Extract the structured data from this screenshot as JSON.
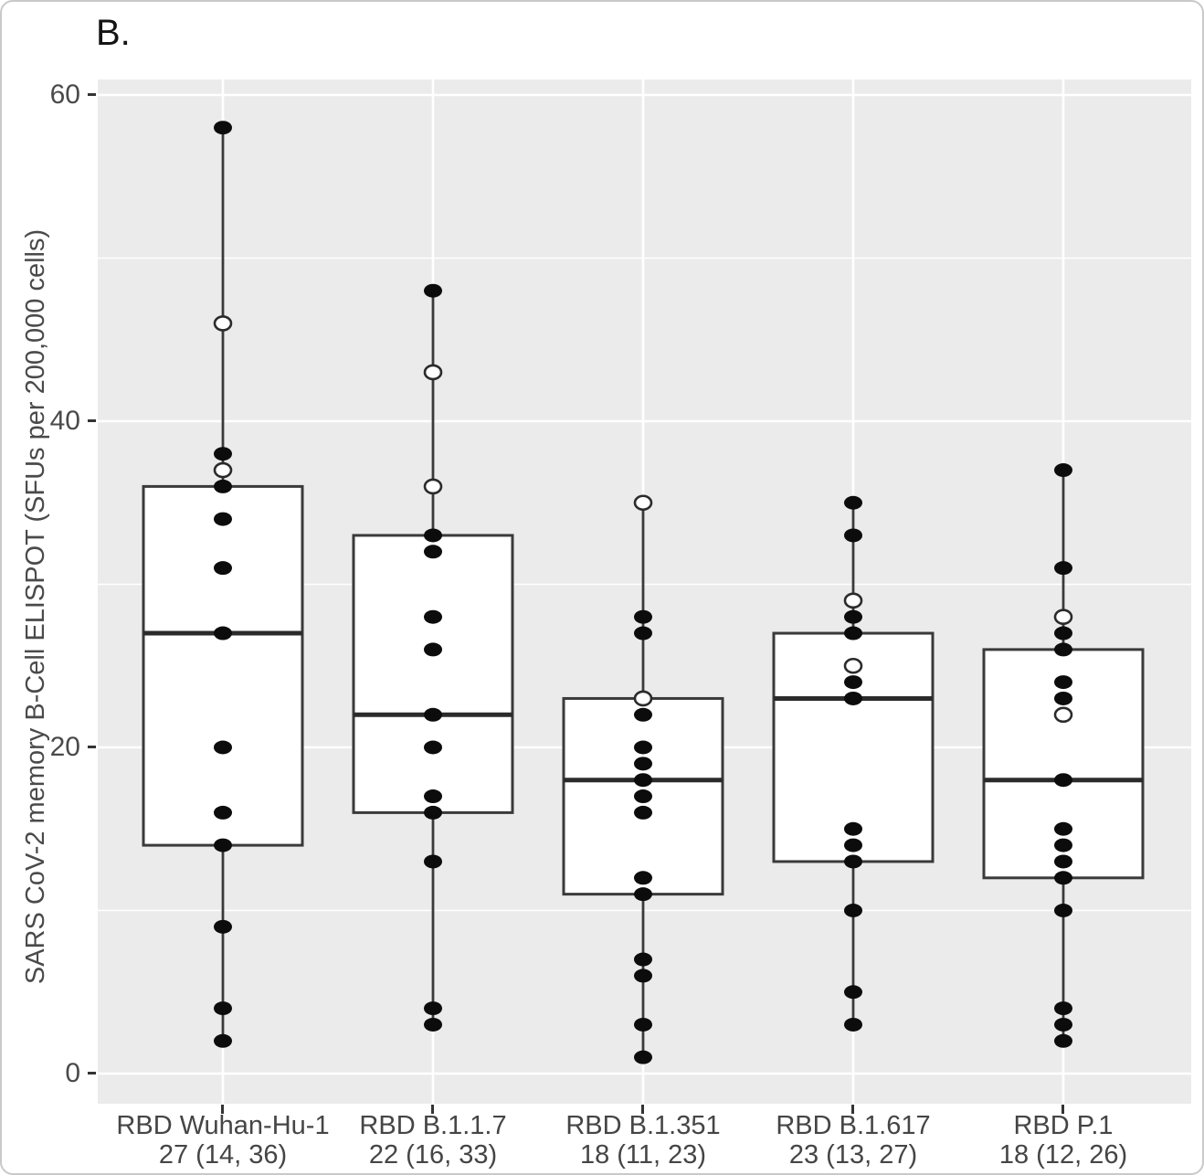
{
  "panel_label": "B.",
  "y_axis": {
    "label": "SARS CoV-2 memory B-Cell ELISPOT (SFUs per 200,000 cells)",
    "ticks": [
      {
        "label": "60",
        "value": 60
      },
      {
        "label": "40",
        "value": 40
      },
      {
        "label": "20",
        "value": 20
      },
      {
        "label": "0",
        "value": 0
      }
    ],
    "minor_gridlines": [
      50,
      30,
      10
    ]
  },
  "chart_data": {
    "type": "boxplot",
    "title": "B.",
    "xlabel": "",
    "ylabel": "SARS CoV-2 memory B-Cell ELISPOT (SFUs per 200,000 cells)",
    "ylim": [
      -2,
      61
    ],
    "grid": "white major and minor horizontal lines plus vertical category lines on gray background",
    "legend": "none",
    "categories": [
      "RBD Wuhan-Hu-1",
      "RBD B.1.1.7",
      "RBD B.1.351",
      "RBD B.1.617",
      "RBD P.1"
    ],
    "category_stats_labels": [
      "27 (14, 36)",
      "22 (16, 33)",
      "18 (11, 23)",
      "23 (13, 27)",
      "18 (12, 26)"
    ],
    "series": [
      {
        "label": "RBD Wuhan-Hu-1",
        "stats_label": "27 (14, 36)",
        "median": 27,
        "q1": 14,
        "q3": 36,
        "whisker_low": 2,
        "whisker_high": 58,
        "points": [
          {
            "value": 58,
            "open": false
          },
          {
            "value": 46,
            "open": true
          },
          {
            "value": 38,
            "open": false
          },
          {
            "value": 37,
            "open": true
          },
          {
            "value": 36,
            "open": false
          },
          {
            "value": 34,
            "open": false
          },
          {
            "value": 31,
            "open": false
          },
          {
            "value": 27,
            "open": false
          },
          {
            "value": 20,
            "open": false
          },
          {
            "value": 16,
            "open": false
          },
          {
            "value": 14,
            "open": false
          },
          {
            "value": 9,
            "open": false
          },
          {
            "value": 4,
            "open": false
          },
          {
            "value": 2,
            "open": false
          }
        ]
      },
      {
        "label": "RBD B.1.1.7",
        "stats_label": "22 (16, 33)",
        "median": 22,
        "q1": 16,
        "q3": 33,
        "whisker_low": 3,
        "whisker_high": 48,
        "points": [
          {
            "value": 48,
            "open": false
          },
          {
            "value": 43,
            "open": true
          },
          {
            "value": 36,
            "open": true
          },
          {
            "value": 33,
            "open": false
          },
          {
            "value": 32,
            "open": false
          },
          {
            "value": 28,
            "open": false
          },
          {
            "value": 26,
            "open": false
          },
          {
            "value": 22,
            "open": false
          },
          {
            "value": 20,
            "open": false
          },
          {
            "value": 17,
            "open": false
          },
          {
            "value": 16,
            "open": false
          },
          {
            "value": 13,
            "open": false
          },
          {
            "value": 4,
            "open": false
          },
          {
            "value": 3,
            "open": false
          }
        ]
      },
      {
        "label": "RBD B.1.351",
        "stats_label": "18 (11, 23)",
        "median": 18,
        "q1": 11,
        "q3": 23,
        "whisker_low": 1,
        "whisker_high": 35,
        "points": [
          {
            "value": 35,
            "open": true
          },
          {
            "value": 28,
            "open": false
          },
          {
            "value": 27,
            "open": false
          },
          {
            "value": 23,
            "open": true
          },
          {
            "value": 22,
            "open": false
          },
          {
            "value": 20,
            "open": false
          },
          {
            "value": 19,
            "open": false
          },
          {
            "value": 18,
            "open": false
          },
          {
            "value": 17,
            "open": false
          },
          {
            "value": 16,
            "open": false
          },
          {
            "value": 12,
            "open": false
          },
          {
            "value": 11,
            "open": false
          },
          {
            "value": 7,
            "open": false
          },
          {
            "value": 6,
            "open": false
          },
          {
            "value": 3,
            "open": false
          },
          {
            "value": 1,
            "open": false
          }
        ]
      },
      {
        "label": "RBD B.1.617",
        "stats_label": "23 (13, 27)",
        "median": 23,
        "q1": 13,
        "q3": 27,
        "whisker_low": 3,
        "whisker_high": 35,
        "points": [
          {
            "value": 35,
            "open": false
          },
          {
            "value": 33,
            "open": false
          },
          {
            "value": 29,
            "open": true
          },
          {
            "value": 28,
            "open": false
          },
          {
            "value": 27,
            "open": false
          },
          {
            "value": 25,
            "open": true
          },
          {
            "value": 24,
            "open": false
          },
          {
            "value": 23,
            "open": false
          },
          {
            "value": 15,
            "open": false
          },
          {
            "value": 14,
            "open": false
          },
          {
            "value": 13,
            "open": false
          },
          {
            "value": 10,
            "open": false
          },
          {
            "value": 5,
            "open": false
          },
          {
            "value": 3,
            "open": false
          }
        ]
      },
      {
        "label": "RBD P.1",
        "stats_label": "18 (12, 26)",
        "median": 18,
        "q1": 12,
        "q3": 26,
        "whisker_low": 2,
        "whisker_high": 37,
        "points": [
          {
            "value": 37,
            "open": false
          },
          {
            "value": 31,
            "open": false
          },
          {
            "value": 28,
            "open": true
          },
          {
            "value": 27,
            "open": false
          },
          {
            "value": 26,
            "open": false
          },
          {
            "value": 24,
            "open": false
          },
          {
            "value": 23,
            "open": false
          },
          {
            "value": 22,
            "open": true
          },
          {
            "value": 18,
            "open": false
          },
          {
            "value": 15,
            "open": false
          },
          {
            "value": 14,
            "open": false
          },
          {
            "value": 13,
            "open": false
          },
          {
            "value": 12,
            "open": false
          },
          {
            "value": 10,
            "open": false
          },
          {
            "value": 4,
            "open": false
          },
          {
            "value": 3,
            "open": false
          },
          {
            "value": 2,
            "open": false
          }
        ]
      }
    ]
  },
  "colors": {
    "plot_background": "#ebebeb",
    "gridline": "#ffffff",
    "box_fill": "#ffffff",
    "box_stroke": "#3a3a3a",
    "median_stroke": "#2b2b2b",
    "point_fill": "#0c0c0c",
    "open_point_fill": "#ffffff",
    "open_point_stroke": "#2b2b2b",
    "axis_text": "#4a4a4a",
    "tick_mark": "#333333",
    "card_border": "#c9c9c9"
  }
}
